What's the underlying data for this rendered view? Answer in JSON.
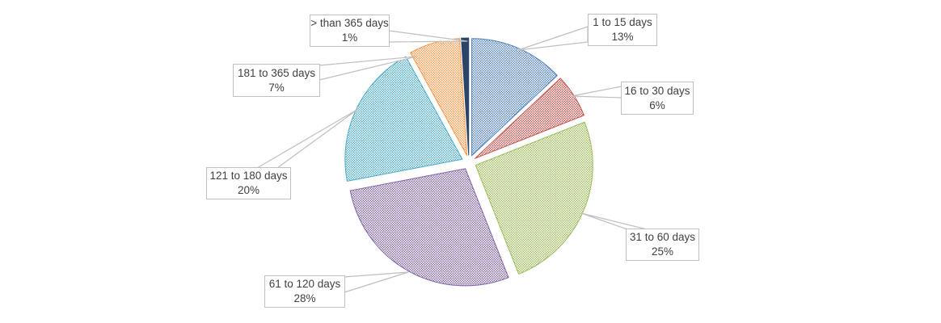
{
  "chart_data": {
    "type": "pie",
    "title": "",
    "unit": "%",
    "direction": "clockwise",
    "start_angle_deg": 0,
    "exploded": true,
    "fill_style": "dotted-pattern",
    "background_color": "#FFFFFF",
    "callout_border_color": "#BFBFBF",
    "leader_line_color": "#BFBFBF",
    "text_color": "#404040",
    "slices": [
      {
        "label": "1 to 15 days",
        "value": 13,
        "pct": "13%",
        "color": "#4F81BD",
        "pattern": true
      },
      {
        "label": "16 to 30 days",
        "value": 6,
        "pct": "6%",
        "color": "#C0504D",
        "pattern": true
      },
      {
        "label": "31 to 60 days",
        "value": 25,
        "pct": "25%",
        "color": "#9BBB59",
        "pattern": true
      },
      {
        "label": "61 to 120 days",
        "value": 28,
        "pct": "28%",
        "color": "#8064A2",
        "pattern": true
      },
      {
        "label": "121 to 180 days",
        "value": 20,
        "pct": "20%",
        "color": "#4BACC6",
        "pattern": true
      },
      {
        "label": "181 to 365 days",
        "value": 7,
        "pct": "7%",
        "color": "#F79646",
        "pattern": true
      },
      {
        "label": "> than 365 days",
        "value": 1,
        "pct": "1%",
        "color": "#2C4566",
        "pattern": false
      }
    ]
  }
}
